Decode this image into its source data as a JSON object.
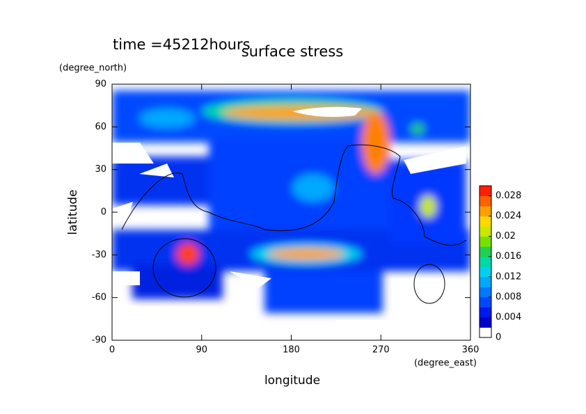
{
  "chart_data": {
    "type": "contour",
    "title": "surface stress",
    "subtitle": "time =45212hours",
    "x_label": "longitude",
    "x_unit": "(degree_east)",
    "y_label": "latitude",
    "y_unit": "(degree_north)",
    "xlim": [
      0,
      360
    ],
    "xticks": [
      0,
      90,
      180,
      270,
      360
    ],
    "ylim": [
      -90,
      90
    ],
    "yticks": [
      -90,
      -60,
      -30,
      0,
      30,
      60,
      90
    ],
    "colorbar": {
      "lim": [
        0,
        0.03
      ],
      "ticks": [
        0,
        0.004,
        0.008,
        0.012,
        0.016,
        0.02,
        0.024,
        0.028
      ],
      "colors": [
        "#ffffff",
        "#0000c8",
        "#0018f0",
        "#0048ff",
        "#0078ff",
        "#00a8ff",
        "#00d0f0",
        "#00d8a8",
        "#20d050",
        "#78e000",
        "#c8e800",
        "#ffd800",
        "#ffa000",
        "#ff6000",
        "#ff2000"
      ]
    }
  }
}
